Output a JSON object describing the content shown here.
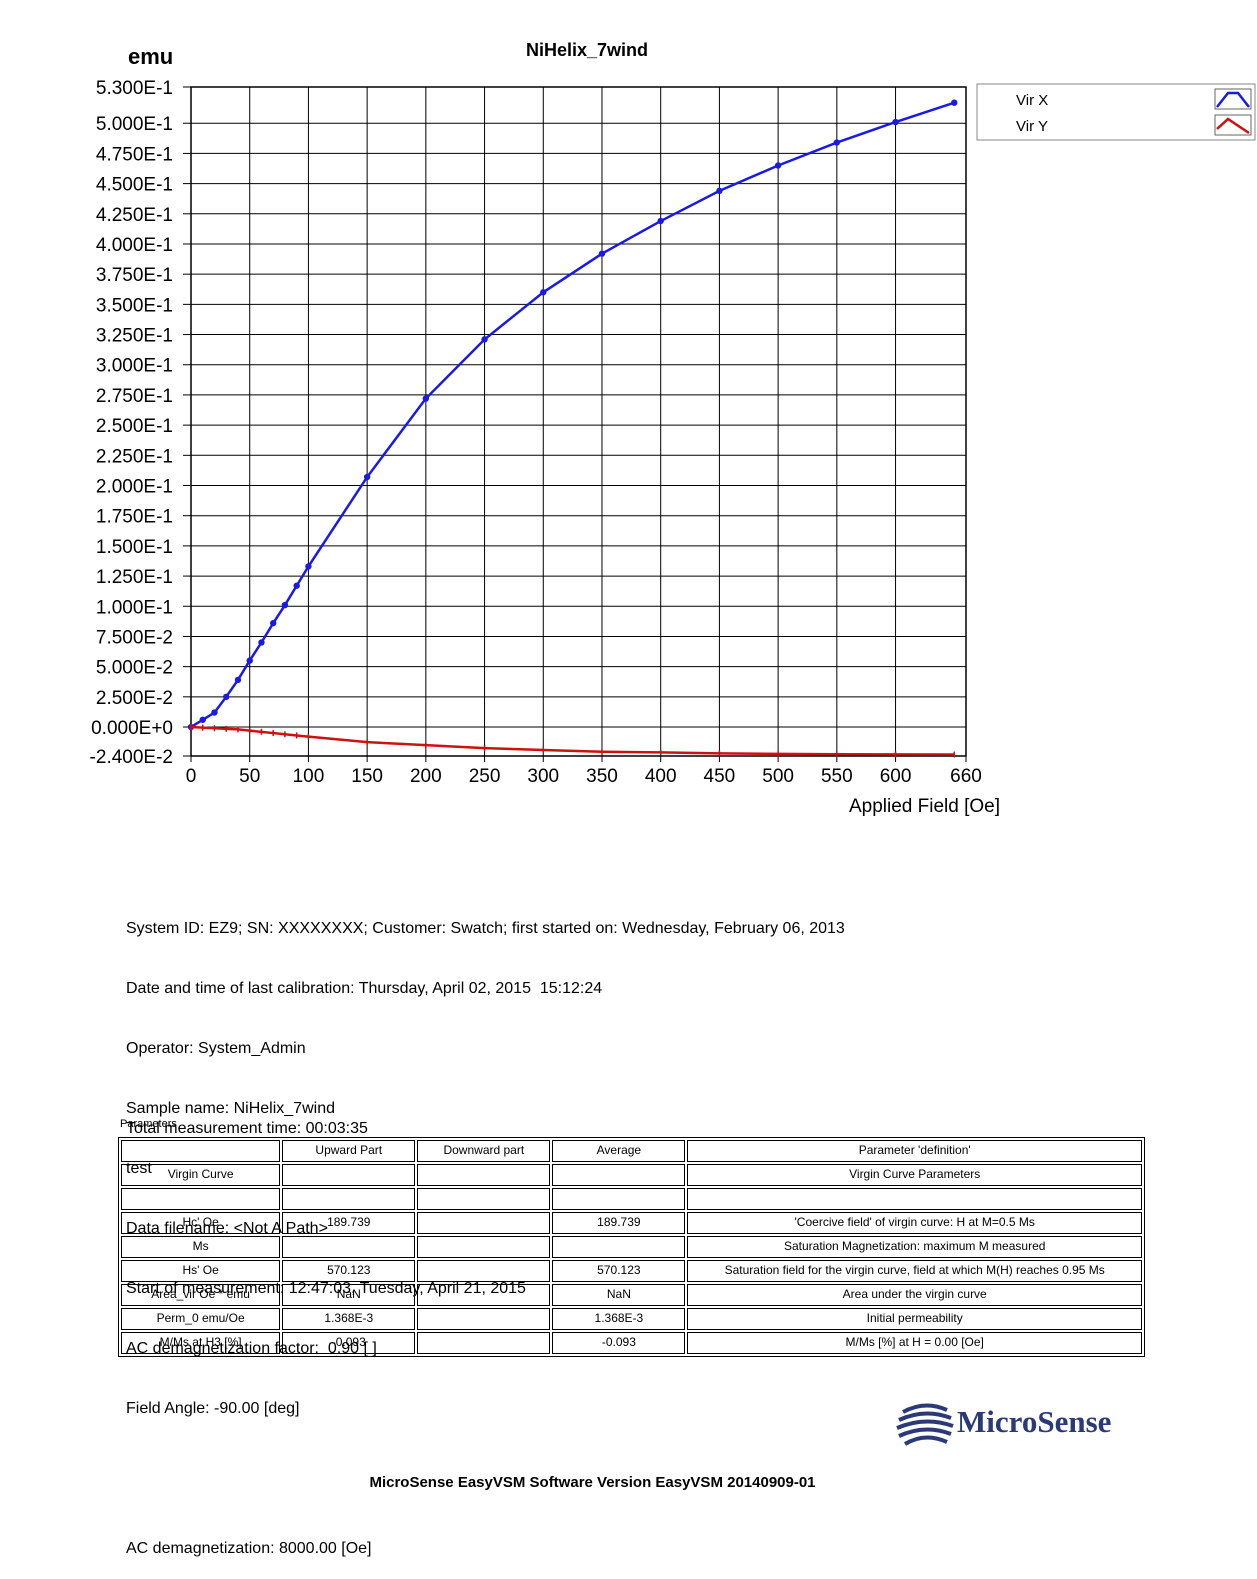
{
  "chart_data": {
    "type": "line",
    "title": "NiHelix_7wind",
    "ylabel": "emu",
    "xlabel": "Applied Field [Oe]",
    "xlim": [
      0,
      660
    ],
    "ylim": [
      -0.024,
      0.53
    ],
    "x_ticks": [
      "0",
      "50",
      "100",
      "150",
      "200",
      "250",
      "300",
      "350",
      "400",
      "450",
      "500",
      "550",
      "600",
      "660"
    ],
    "x_tick_values": [
      0,
      50,
      100,
      150,
      200,
      250,
      300,
      350,
      400,
      450,
      500,
      550,
      600,
      660
    ],
    "y_ticks": [
      "5.300E-1",
      "5.000E-1",
      "4.750E-1",
      "4.500E-1",
      "4.250E-1",
      "4.000E-1",
      "3.750E-1",
      "3.500E-1",
      "3.250E-1",
      "3.000E-1",
      "2.750E-1",
      "2.500E-1",
      "2.250E-1",
      "2.000E-1",
      "1.750E-1",
      "1.500E-1",
      "1.250E-1",
      "1.000E-1",
      "7.500E-2",
      "5.000E-2",
      "2.500E-2",
      "0.000E+0",
      "-2.400E-2"
    ],
    "y_tick_values": [
      0.53,
      0.5,
      0.475,
      0.45,
      0.425,
      0.4,
      0.375,
      0.35,
      0.325,
      0.3,
      0.275,
      0.25,
      0.225,
      0.2,
      0.175,
      0.15,
      0.125,
      0.1,
      0.075,
      0.05,
      0.025,
      0,
      -0.024
    ],
    "grid": true,
    "legend": "top-right",
    "series": [
      {
        "name": "Vir X",
        "color": "#1a1ae6",
        "x": [
          0,
          10,
          20,
          30,
          40,
          50,
          60,
          70,
          80,
          90,
          100,
          150,
          200,
          250,
          300,
          350,
          400,
          450,
          500,
          550,
          600,
          650
        ],
        "y": [
          0,
          0.006,
          0.012,
          0.025,
          0.039,
          0.055,
          0.07,
          0.086,
          0.101,
          0.117,
          0.133,
          0.207,
          0.272,
          0.321,
          0.36,
          0.392,
          0.419,
          0.444,
          0.465,
          0.484,
          0.501,
          0.517
        ]
      },
      {
        "name": "Vir Y",
        "color": "#cc1111",
        "x": [
          0,
          10,
          20,
          30,
          40,
          50,
          60,
          70,
          80,
          90,
          100,
          150,
          200,
          250,
          300,
          350,
          400,
          450,
          500,
          550,
          600,
          650
        ],
        "y": [
          0,
          -0.0005,
          -0.001,
          -0.0015,
          -0.002,
          -0.003,
          -0.004,
          -0.005,
          -0.006,
          -0.007,
          -0.008,
          -0.0125,
          -0.015,
          -0.0175,
          -0.019,
          -0.0205,
          -0.021,
          -0.0218,
          -0.0222,
          -0.0225,
          -0.0227,
          -0.0228
        ]
      }
    ]
  },
  "info": {
    "system_id": "System ID: EZ9; SN: XXXXXXXX; Customer: Swatch; first started on: Wednesday, February 06, 2013",
    "calibration": "Date and time of last calibration: Thursday, April 02, 2015  15:12:24",
    "operator": "Operator: System_Admin",
    "sample": "Sample name: NiHelix_7wind",
    "note": "test",
    "filename": "Data filename: <Not A Path>",
    "start": "Start of measurement: 12:47:03, Tuesday, April 21, 2015",
    "ac_factor": "AC demagnetization factor:  0.90 [ ]",
    "field_angle": "Field Angle: -90.00 [deg]",
    "ac_demag": "AC demagnetization: 8000.00 [Oe]",
    "total_time": "Total measurement time: 00:03:35"
  },
  "params": {
    "label": "Parameters",
    "header": [
      "",
      "Upward Part",
      "Downward part",
      "Average",
      "Parameter 'definition'"
    ],
    "rows": [
      [
        "Virgin Curve",
        "",
        "",
        "",
        "Virgin Curve Parameters"
      ],
      [
        "",
        "",
        "",
        "",
        ""
      ],
      [
        "Hc' Oe",
        "189.739",
        "",
        "189.739",
        "'Coercive field' of virgin curve: H at M=0.5 Ms"
      ],
      [
        "Ms",
        "",
        "",
        "",
        "Saturation Magnetization: maximum M measured"
      ],
      [
        "Hs' Oe",
        "570.123",
        "",
        "570.123",
        "Saturation field for the virgin curve,  field at which M(H) reaches 0.95 Ms"
      ],
      [
        "Area_vir Oe * emu",
        "NaN",
        "",
        "NaN",
        "Area under the virgin curve"
      ],
      [
        "Perm_0 emu/Oe",
        "1.368E-3",
        "",
        "1.368E-3",
        "Initial permeability"
      ],
      [
        "M/Ms at H3 [%]",
        "-0.093",
        "",
        "-0.093",
        "M/Ms [%] at H =  0.00 [Oe]"
      ]
    ]
  },
  "logo": {
    "text": "MicroSense",
    "color": "#2a3a78"
  },
  "footer": "MicroSense EasyVSM Software Version EasyVSM 20140909-01"
}
